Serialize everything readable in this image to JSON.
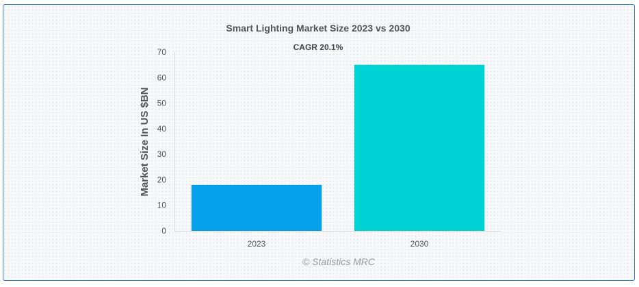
{
  "chart_data": {
    "type": "bar",
    "title": "Smart Lighting Market Size 2023 vs 2030",
    "subtitle": "CAGR 20.1%",
    "categories": [
      "2023",
      "2030"
    ],
    "values": [
      18,
      65
    ],
    "colors": [
      "#039fe8",
      "#00d2d3"
    ],
    "xlabel": "",
    "ylabel": "Market Size In US $BN",
    "ylim": [
      0,
      70
    ],
    "yticks": [
      "0",
      "10",
      "20",
      "30",
      "40",
      "50",
      "60",
      "70"
    ],
    "grid": false,
    "legend": "none"
  },
  "credit": "© Statistics MRC"
}
